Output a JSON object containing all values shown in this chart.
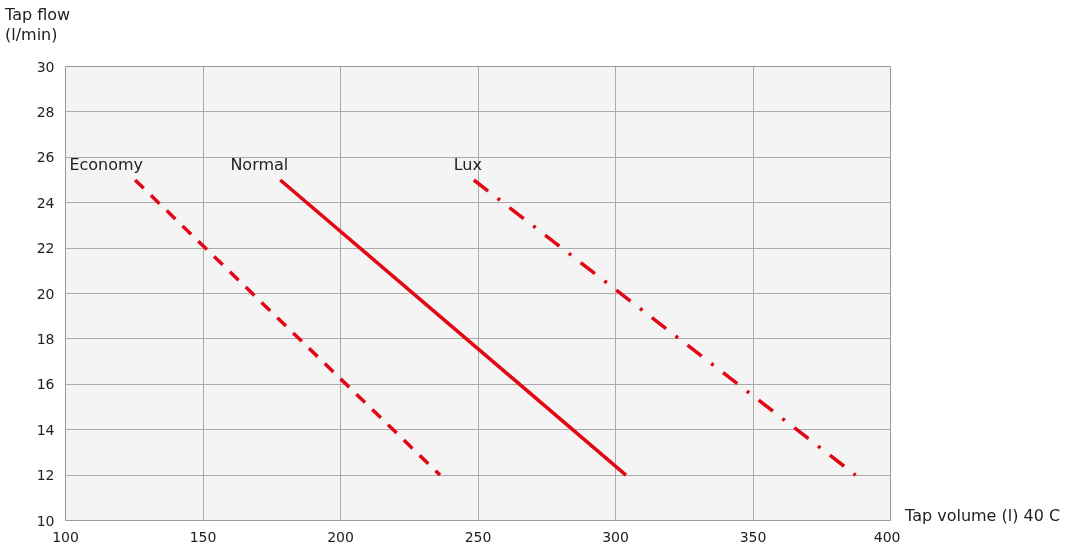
{
  "chart_data": {
    "type": "line",
    "xlabel": "Tap volume (l) 40 C",
    "ylabel": "Tap flow\n(l/min)",
    "series": [
      {
        "name": "Economy",
        "color": "#e30613",
        "line_style": "dashed",
        "x": [
          125.3,
          236.2
        ],
        "values": [
          25,
          12
        ]
      },
      {
        "name": "Normal",
        "color": "#e30613",
        "line_style": "solid",
        "x": [
          178.1,
          303.8
        ],
        "values": [
          25,
          12
        ]
      },
      {
        "name": "Lux",
        "color": "#e30613",
        "line_style": "dashdot",
        "x": [
          248.5,
          387.3
        ],
        "values": [
          25,
          12
        ]
      }
    ],
    "xlim": [
      100,
      400
    ],
    "xticks": [
      100,
      150,
      200,
      250,
      300,
      350,
      400
    ],
    "ylim": [
      10,
      30
    ],
    "yticks": [
      10,
      12,
      14,
      16,
      18,
      20,
      22,
      24,
      26,
      28,
      30
    ],
    "grid": true,
    "marker": "none"
  }
}
